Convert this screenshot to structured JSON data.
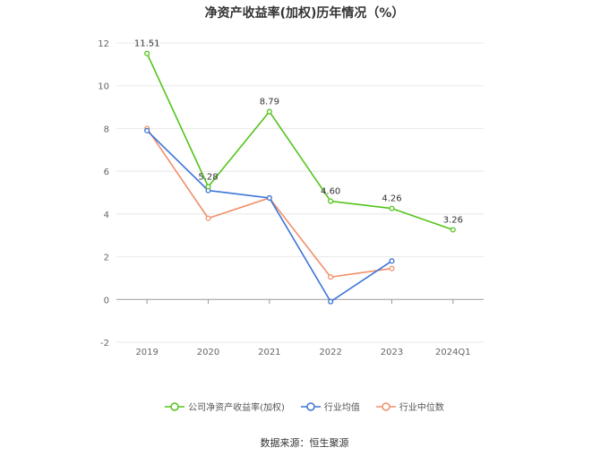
{
  "title": "净资产收益率(加权)历年情况（%）",
  "source": "数据来源：恒生聚源",
  "chart_data": {
    "type": "line",
    "categories": [
      "2019",
      "2020",
      "2021",
      "2022",
      "2023",
      "2024Q1"
    ],
    "ylim": [
      -2,
      12
    ],
    "yticks": [
      -2,
      0,
      2,
      4,
      6,
      8,
      10,
      12
    ],
    "grid": true,
    "legend_position": "bottom",
    "series": [
      {
        "name": "公司净资产收益率(加权)",
        "color": "#52c41a",
        "values": [
          11.51,
          5.28,
          8.79,
          4.6,
          4.26,
          3.26
        ],
        "labels": [
          "11.51",
          "5.28",
          "8.79",
          "4.60",
          "4.26",
          "3.26"
        ]
      },
      {
        "name": "行业均值",
        "color": "#3a74d9",
        "values": [
          7.9,
          5.1,
          4.75,
          -0.1,
          1.8,
          null
        ],
        "labels": null
      },
      {
        "name": "行业中位数",
        "color": "#f0906a",
        "values": [
          8.0,
          3.8,
          4.75,
          1.05,
          1.45,
          null
        ],
        "labels": null
      }
    ]
  }
}
